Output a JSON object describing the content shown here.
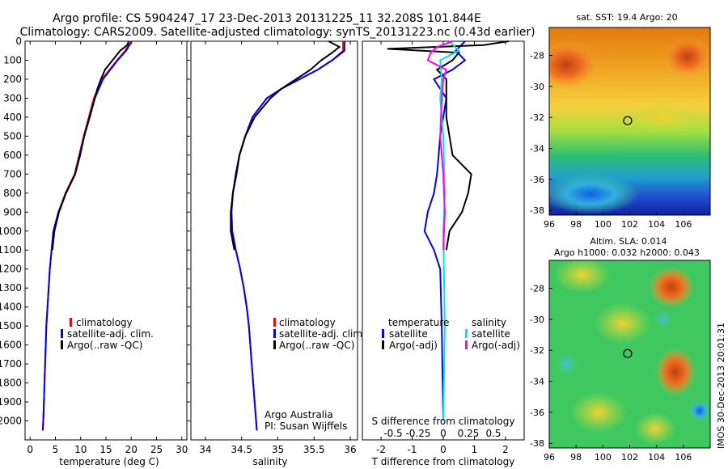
{
  "header": {
    "line1": "Argo profile: CS 5904247_17 23-Dec-2013 20131225_11 32.208S 101.844E",
    "line2": "Climatology: CARS2009. Satellite-adjusted climatology: synTS_20131223.nc (0.43d earlier)"
  },
  "colors": {
    "climatology": "#ff0000",
    "satellite": "#0000ff",
    "argo": "#000000",
    "salinity_satellite": "#00e5e5",
    "salinity_argo": "#ff00ff"
  },
  "footer_notes": {
    "institution": "Argo Australia",
    "pi": "PI: Susan Wijffels",
    "stamp": "IMOS 30-Dec-2013 20:01:31"
  },
  "chart_data": [
    {
      "type": "line",
      "xlabel": "temperature (deg C)",
      "ylim": [
        2100,
        0
      ],
      "xlim": [
        -1,
        31
      ],
      "xticks": [
        0,
        5,
        10,
        15,
        20,
        25,
        30
      ],
      "yticks": [
        0,
        100,
        200,
        300,
        400,
        500,
        600,
        700,
        800,
        900,
        1000,
        1100,
        1200,
        1300,
        1400,
        1500,
        1600,
        1700,
        1800,
        1900,
        2000
      ],
      "legend": [
        "climatology",
        "satellite-adj. clim.",
        "Argo(..raw -QC)"
      ],
      "legend_position": "lower-right",
      "series": [
        {
          "name": "climatology",
          "depth": [
            0,
            50,
            100,
            200,
            300,
            400,
            500,
            600,
            700,
            800,
            900,
            1000,
            1200,
            1500,
            2000,
            2050
          ],
          "values": [
            20,
            18.8,
            17.2,
            14.2,
            12.6,
            11.6,
            10.6,
            9.7,
            8.8,
            7.0,
            5.6,
            4.6,
            3.9,
            3.2,
            2.6,
            2.5
          ]
        },
        {
          "name": "satellite-adj. clim.",
          "depth": [
            0,
            50,
            100,
            200,
            300,
            400,
            500,
            600,
            700,
            800,
            900,
            1000,
            1200,
            1500,
            2000,
            2050
          ],
          "values": [
            20.1,
            19.0,
            17.3,
            14.4,
            12.8,
            11.7,
            10.7,
            9.8,
            8.9,
            7.1,
            5.6,
            4.6,
            3.9,
            3.2,
            2.6,
            2.5
          ]
        },
        {
          "name": "Argo(..raw -QC)",
          "depth": [
            0,
            20,
            50,
            100,
            150,
            200,
            250,
            300,
            400,
            500,
            600,
            700,
            800,
            900,
            1000,
            1100
          ],
          "values": [
            19.5,
            19.2,
            17.8,
            16.3,
            14.8,
            14.0,
            13.3,
            12.8,
            11.8,
            10.7,
            9.9,
            8.9,
            7.1,
            5.7,
            4.8,
            4.4
          ]
        }
      ]
    },
    {
      "type": "line",
      "xlabel": "salinity",
      "ylim": [
        2100,
        0
      ],
      "xlim": [
        33.8,
        36.1
      ],
      "xticks": [
        34,
        34.5,
        35,
        35.5,
        36
      ],
      "legend": [
        "climatology",
        "satellite-adj. clim.",
        "Argo(..raw -QC)"
      ],
      "legend_position": "lower-right",
      "series": [
        {
          "name": "climatology",
          "depth": [
            0,
            50,
            100,
            150,
            200,
            250,
            300,
            400,
            500,
            600,
            700,
            800,
            900,
            1000,
            1100,
            1200,
            1300,
            1400,
            1500,
            1700,
            2000,
            2050
          ],
          "values": [
            35.9,
            35.9,
            35.75,
            35.55,
            35.3,
            35.05,
            34.85,
            34.65,
            34.55,
            34.47,
            34.43,
            34.38,
            34.36,
            34.37,
            34.42,
            34.48,
            34.53,
            34.57,
            34.6,
            34.64,
            34.7,
            34.71
          ]
        },
        {
          "name": "satellite-adj. clim.",
          "depth": [
            0,
            50,
            100,
            150,
            200,
            250,
            300,
            400,
            500,
            600,
            700,
            800,
            900,
            1000,
            1100,
            1200,
            1300,
            1400,
            1500,
            1700,
            2000,
            2050
          ],
          "values": [
            35.92,
            35.92,
            35.75,
            35.55,
            35.3,
            35.05,
            34.85,
            34.65,
            34.55,
            34.47,
            34.43,
            34.38,
            34.36,
            34.37,
            34.42,
            34.48,
            34.53,
            34.57,
            34.6,
            34.64,
            34.7,
            34.71
          ]
        },
        {
          "name": "Argo(..raw -QC)",
          "depth": [
            0,
            30,
            60,
            100,
            150,
            200,
            250,
            300,
            400,
            500,
            600,
            700,
            800,
            900,
            1000,
            1100
          ],
          "values": [
            35.7,
            35.85,
            35.75,
            35.6,
            35.45,
            35.25,
            35.05,
            34.9,
            34.68,
            34.55,
            34.47,
            34.42,
            34.38,
            34.35,
            34.35,
            34.4
          ]
        }
      ]
    },
    {
      "type": "line",
      "xlabel": "T difference from climatology",
      "top_xlabel": "S difference from climatology",
      "ylim": [
        2100,
        0
      ],
      "xlim": [
        -2.6,
        2.6
      ],
      "xticks": [
        -2,
        -1,
        0,
        1,
        2
      ],
      "top_xticks": [
        "-0.5",
        "-0.25",
        "0",
        "0.25",
        "0.5"
      ],
      "legend_headings": [
        "temperature",
        "salinity"
      ],
      "legend": [
        "satellite",
        "Argo(-adj)",
        "satellite",
        "Argo(-adj)"
      ],
      "legend_position": "lower-center",
      "series": [
        {
          "name": "satellite",
          "group": "temperature",
          "depth": [
            0,
            50,
            100,
            150,
            200,
            300,
            400,
            500,
            700,
            800,
            900,
            1000,
            1100,
            1200,
            1500,
            2000
          ],
          "values": [
            0.7,
            0.4,
            0.7,
            0.3,
            -0.3,
            0.1,
            0.0,
            -0.1,
            -0.2,
            -0.3,
            -0.5,
            -0.6,
            -0.3,
            -0.1,
            -0.05,
            0
          ]
        },
        {
          "name": "Argo(-adj)",
          "group": "temperature",
          "depth": [
            0,
            20,
            40,
            60,
            100,
            150,
            200,
            400,
            600,
            700,
            800,
            900,
            1000,
            1100
          ],
          "values": [
            2.1,
            1.3,
            -1.8,
            0.5,
            0.3,
            -0.2,
            0.1,
            0.1,
            0.3,
            0.9,
            0.8,
            0.6,
            0.2,
            0.1
          ]
        },
        {
          "name": "satellite",
          "group": "salinity",
          "depth": [
            0,
            50,
            100,
            200,
            300,
            500,
            800,
            1000,
            1500,
            2000
          ],
          "values": [
            0.2,
            0.5,
            -0.1,
            -0.05,
            -0.1,
            0.0,
            0.05,
            0.0,
            0.05,
            0.0
          ]
        },
        {
          "name": "Argo(-adj)",
          "group": "salinity",
          "depth": [
            0,
            30,
            60,
            100,
            150,
            200,
            300,
            500,
            700,
            900,
            1100
          ],
          "values": [
            0.3,
            -0.2,
            -0.4,
            -0.5,
            0.1,
            0.0,
            -0.05,
            -0.1,
            0.0,
            0.05,
            0.0
          ]
        }
      ]
    },
    {
      "type": "heatmap",
      "title": "sat. SST: 19.4  Argo: 20",
      "xticks": [
        96,
        98,
        100,
        102,
        104,
        106
      ],
      "yticks": [
        -28,
        -30,
        -32,
        -34,
        -36,
        -38
      ],
      "xlim": [
        96,
        108
      ],
      "ylim": [
        -38.3,
        -26.2
      ],
      "marker": {
        "lon": 101.844,
        "lat": -32.208
      }
    },
    {
      "type": "heatmap",
      "title": "Altim. SLA: 0.014",
      "subtitle": "Argo h1000: 0.032  h2000: 0.043",
      "xticks": [
        96,
        98,
        100,
        102,
        104,
        106
      ],
      "yticks": [
        -28,
        -30,
        -32,
        -34,
        -36,
        -38
      ],
      "xlim": [
        96,
        108
      ],
      "ylim": [
        -38.3,
        -26.2
      ],
      "marker": {
        "lon": 101.844,
        "lat": -32.208
      }
    }
  ]
}
